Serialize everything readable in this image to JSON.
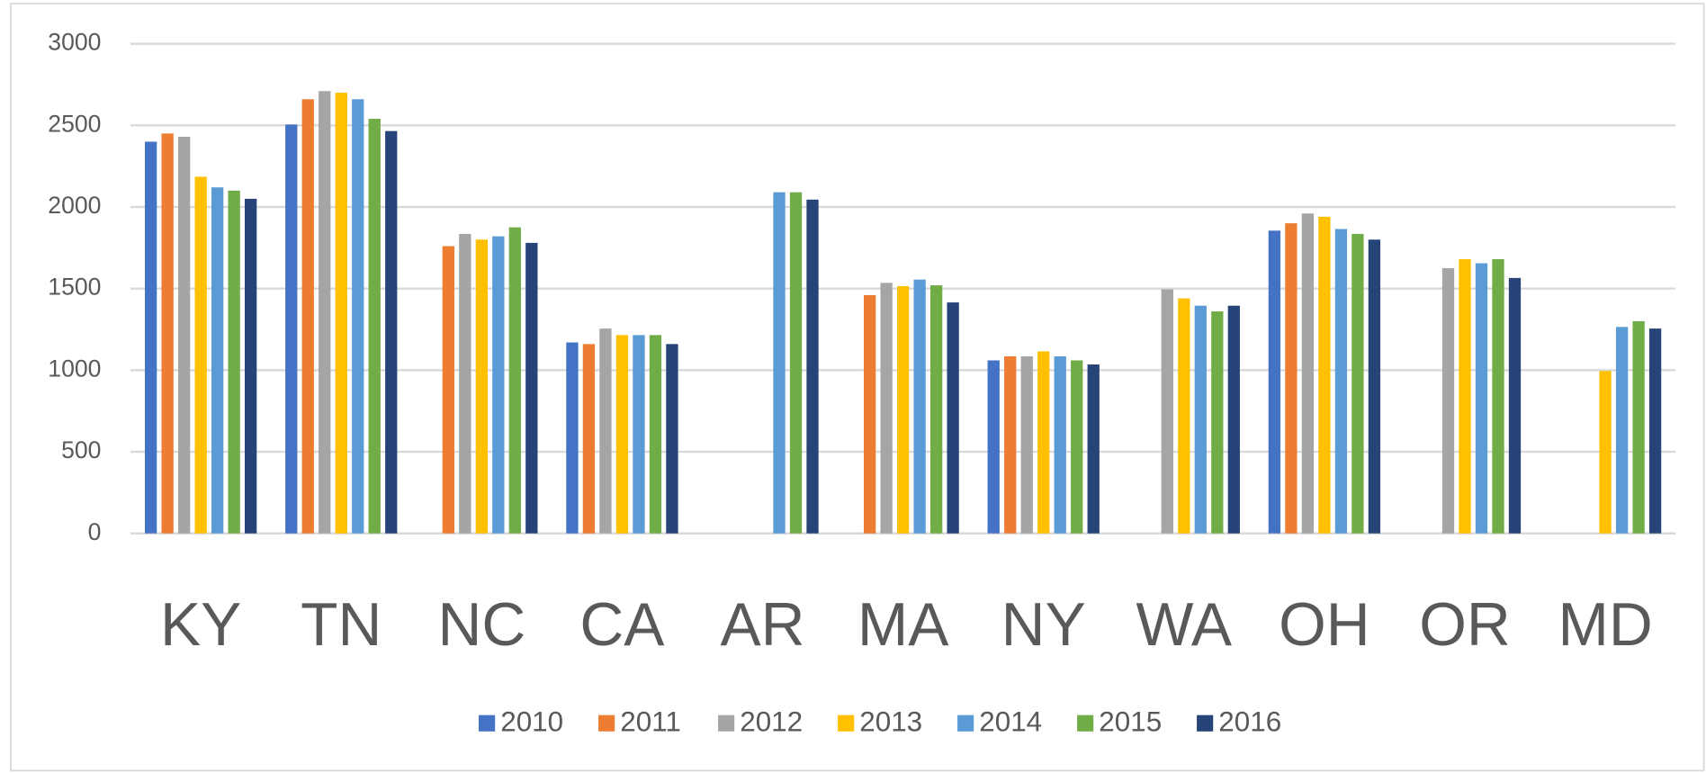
{
  "chart_data": {
    "type": "bar",
    "categories": [
      "KY",
      "TN",
      "NC",
      "CA",
      "AR",
      "MA",
      "NY",
      "WA",
      "OH",
      "OR",
      "MD"
    ],
    "series": [
      {
        "name": "2010",
        "color": "#4472c4",
        "values": [
          2400,
          2505,
          null,
          1170,
          null,
          null,
          1060,
          null,
          1855,
          null,
          null
        ]
      },
      {
        "name": "2011",
        "color": "#ed7d31",
        "values": [
          2450,
          2660,
          1760,
          1160,
          null,
          1460,
          1085,
          null,
          1900,
          null,
          null
        ]
      },
      {
        "name": "2012",
        "color": "#a5a5a5",
        "values": [
          2430,
          2710,
          1835,
          1255,
          null,
          1535,
          1085,
          1495,
          1960,
          1625,
          null
        ]
      },
      {
        "name": "2013",
        "color": "#ffc000",
        "values": [
          2185,
          2700,
          1800,
          1215,
          null,
          1515,
          1115,
          1440,
          1940,
          1680,
          995
        ]
      },
      {
        "name": "2014",
        "color": "#5b9bd5",
        "values": [
          2120,
          2660,
          1820,
          1215,
          2090,
          1555,
          1085,
          1395,
          1865,
          1655,
          1265
        ]
      },
      {
        "name": "2015",
        "color": "#70ad47",
        "values": [
          2100,
          2540,
          1875,
          1215,
          2090,
          1520,
          1060,
          1360,
          1835,
          1680,
          1300
        ]
      },
      {
        "name": "2016",
        "color": "#264478",
        "values": [
          2050,
          2465,
          1780,
          1160,
          2045,
          1415,
          1035,
          1395,
          1800,
          1565,
          1255
        ]
      }
    ],
    "ylim": [
      0,
      3000
    ],
    "yticks": [
      0,
      500,
      1000,
      1500,
      2000,
      2500,
      3000
    ],
    "grid": true,
    "legend": "bottom"
  }
}
